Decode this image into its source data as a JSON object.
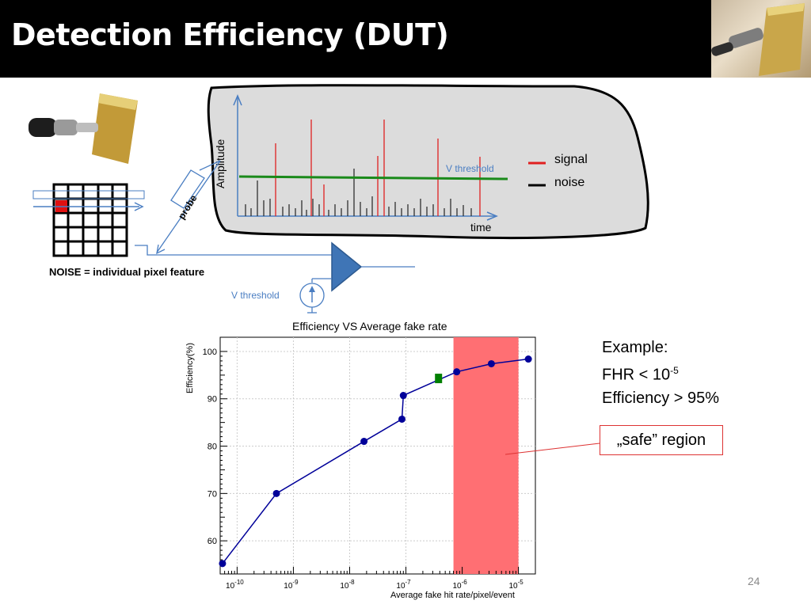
{
  "slide": {
    "title": "Detection Efficiency (DUT)",
    "page_number": "24"
  },
  "diagram": {
    "probe_label": "probe",
    "noise_caption": "NOISE = individual pixel feature",
    "vthreshold_label": "V threshold",
    "amplitude_label": "Amplitude",
    "time_label": "time",
    "vthreshold_line_label": "V threshold",
    "legend": [
      {
        "label": "signal",
        "color": "#e02020"
      },
      {
        "label": "noise",
        "color": "#000000"
      }
    ]
  },
  "example": {
    "heading": "Example:",
    "fhr_prefix": "FHR < 10",
    "fhr_exponent": "-5",
    "efficiency": "Efficiency > 95%"
  },
  "safe_region_label": "„safe” region",
  "chart_data": {
    "type": "scatter",
    "title": "Efficiency VS Average fake rate",
    "xlabel": "Average fake hit rate/pixel/event",
    "ylabel": "Efficiency(%)",
    "x_scale": "log",
    "xlim": [
      5e-11,
      2e-05
    ],
    "ylim": [
      53,
      103
    ],
    "x_ticks": [
      "10-10",
      "10-9",
      "10-8",
      "10-7",
      "10-6",
      "10-5"
    ],
    "y_ticks": [
      60,
      70,
      80,
      90,
      100
    ],
    "grid": true,
    "highlight_region": {
      "x_from": 7e-07,
      "x_to": 1e-05,
      "color": "#ff6f73"
    },
    "series": [
      {
        "color": "#000099",
        "points": [
          {
            "x": 5.5e-11,
            "y": 55.2
          },
          {
            "x": 5e-10,
            "y": 70.0
          },
          {
            "x": 1.8e-08,
            "y": 81.0
          },
          {
            "x": 8.5e-08,
            "y": 85.7
          },
          {
            "x": 9e-08,
            "y": 90.7
          },
          {
            "x": 8e-07,
            "y": 95.7
          },
          {
            "x": 3.3e-06,
            "y": 97.4
          },
          {
            "x": 1.5e-05,
            "y": 98.4
          }
        ]
      }
    ],
    "marker": {
      "x": 3.8e-07,
      "y": 94.3,
      "color": "#008000",
      "shape": "square"
    }
  }
}
